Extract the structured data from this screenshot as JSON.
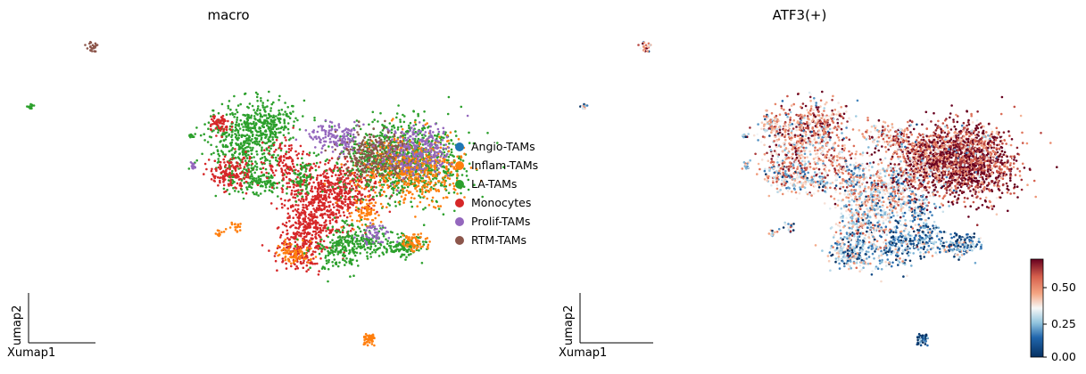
{
  "chart_data": [
    {
      "type": "scatter",
      "title": "macro",
      "xlabel": "umap1",
      "ylabel": "umap2",
      "grid": false,
      "legend_position": "right",
      "legend": [
        {
          "name": "Angio-TAMs",
          "color": "#1f77b4"
        },
        {
          "name": "Inflam-TAMs",
          "color": "#ff7f0e"
        },
        {
          "name": "LA-TAMs",
          "color": "#2ca02c"
        },
        {
          "name": "Monocytes",
          "color": "#d62728"
        },
        {
          "name": "Prolif-TAMs",
          "color": "#9467bd"
        },
        {
          "name": "RTM-TAMs",
          "color": "#8c564b"
        }
      ]
    },
    {
      "type": "scatter",
      "title": "ATF3(+)",
      "xlabel": "umap1",
      "ylabel": "umap2",
      "grid": false,
      "colormap": "RdBu_r",
      "colorbar": {
        "min": 0.0,
        "max": 0.68,
        "ticks": [
          "0.00",
          "0.25",
          "0.50"
        ]
      }
    }
  ]
}
